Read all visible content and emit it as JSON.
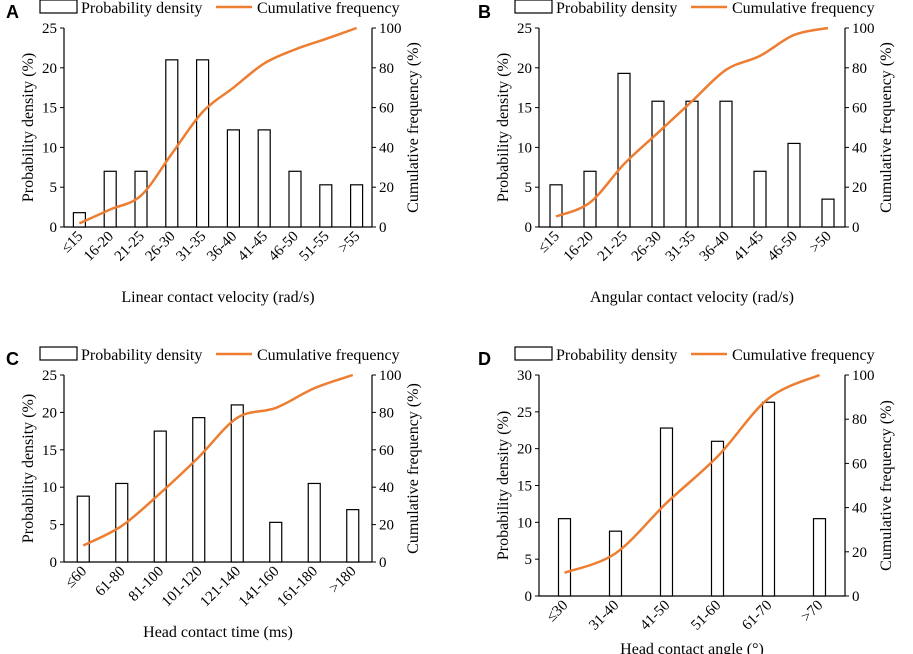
{
  "colors": {
    "line": "#ED7D31",
    "bar_fill": "#ffffff",
    "bar_stroke": "#000000"
  },
  "chart_data": [
    {
      "panel": "A",
      "type": "bar",
      "legend": {
        "bar": "Probability density",
        "line": "Cumulative frequency",
        "placement": "top"
      },
      "xlabel": "Linear contact velocity (rad/s)",
      "ylabel": "Probability density (%)",
      "y2label": "Cumulative frequency (%)",
      "ylim": [
        0,
        25
      ],
      "yticks": [
        0,
        5,
        10,
        15,
        20,
        25
      ],
      "y2lim": [
        0,
        100
      ],
      "y2ticks": [
        0,
        20,
        40,
        60,
        80,
        100
      ],
      "categories": [
        "≤15",
        "16-20",
        "21-25",
        "26-30",
        "31-35",
        "36-40",
        "41-45",
        "46-50",
        "51-55",
        ">55"
      ],
      "series": [
        {
          "name": "Probability density",
          "type": "bar",
          "axis": "left",
          "values": [
            1.8,
            7.0,
            7.0,
            21.0,
            21.0,
            12.2,
            12.2,
            7.0,
            5.3,
            5.3
          ]
        },
        {
          "name": "Cumulative frequency",
          "type": "line",
          "axis": "right",
          "values": [
            1.8,
            8.8,
            15.8,
            36.8,
            57.8,
            70.0,
            82.2,
            89.2,
            94.5,
            100
          ]
        }
      ]
    },
    {
      "panel": "B",
      "type": "bar",
      "legend": {
        "bar": "Probability density",
        "line": "Cumulative frequency",
        "placement": "top"
      },
      "xlabel": "Angular contact velocity (rad/s)",
      "ylabel": "Probability density (%)",
      "y2label": "Cumulative frequency (%)",
      "ylim": [
        0,
        25
      ],
      "yticks": [
        0,
        5,
        10,
        15,
        20,
        25
      ],
      "y2lim": [
        0,
        100
      ],
      "y2ticks": [
        0,
        20,
        40,
        60,
        80,
        100
      ],
      "categories": [
        "≤15",
        "16-20",
        "21-25",
        "26-30",
        "31-35",
        "36-40",
        "41-45",
        "46-50",
        ">50"
      ],
      "series": [
        {
          "name": "Probability density",
          "type": "bar",
          "axis": "left",
          "values": [
            5.3,
            7.0,
            19.3,
            15.8,
            15.8,
            15.8,
            7.0,
            10.5,
            3.5
          ]
        },
        {
          "name": "Cumulative frequency",
          "type": "line",
          "axis": "right",
          "values": [
            5.3,
            12.3,
            31.6,
            47.4,
            63.2,
            79.0,
            86.0,
            96.5,
            100
          ]
        }
      ]
    },
    {
      "panel": "C",
      "type": "bar",
      "legend": {
        "bar": "Probability density",
        "line": "Cumulative frequency",
        "placement": "top"
      },
      "xlabel": "Head contact time (ms)",
      "ylabel": "Probability density (%)",
      "y2label": "Cumulative frequency (%)",
      "ylim": [
        0,
        25
      ],
      "yticks": [
        0,
        5,
        10,
        15,
        20,
        25
      ],
      "y2lim": [
        0,
        100
      ],
      "y2ticks": [
        0,
        20,
        40,
        60,
        80,
        100
      ],
      "categories": [
        "≤60",
        "61-80",
        "81-100",
        "101-120",
        "121-140",
        "141-160",
        "161-180",
        ">180"
      ],
      "series": [
        {
          "name": "Probability density",
          "type": "bar",
          "axis": "left",
          "values": [
            8.8,
            10.5,
            17.5,
            19.3,
            21.0,
            5.3,
            10.5,
            7.0
          ]
        },
        {
          "name": "Cumulative frequency",
          "type": "line",
          "axis": "right",
          "values": [
            8.8,
            19.3,
            36.8,
            56.1,
            77.1,
            82.4,
            92.9,
            100
          ]
        }
      ]
    },
    {
      "panel": "D",
      "type": "bar",
      "legend": {
        "bar": "Probability density",
        "line": "Cumulative frequency",
        "placement": "top"
      },
      "xlabel": "Head contact angle (°)",
      "ylabel": "Probability density (%)",
      "y2label": "Cumulative frequency (%)",
      "ylim": [
        0,
        30
      ],
      "yticks": [
        0,
        5,
        10,
        15,
        20,
        25,
        30
      ],
      "y2lim": [
        0,
        100
      ],
      "y2ticks": [
        0,
        20,
        40,
        60,
        80,
        100
      ],
      "categories": [
        "≤30",
        "31-40",
        "41-50",
        "51-60",
        "61-70",
        ">70"
      ],
      "series": [
        {
          "name": "Probability density",
          "type": "bar",
          "axis": "left",
          "values": [
            10.5,
            8.8,
            22.8,
            21.0,
            26.3,
            10.5
          ]
        },
        {
          "name": "Cumulative frequency",
          "type": "line",
          "axis": "right",
          "values": [
            10.5,
            19.3,
            42.1,
            63.1,
            89.4,
            100
          ]
        }
      ]
    }
  ]
}
